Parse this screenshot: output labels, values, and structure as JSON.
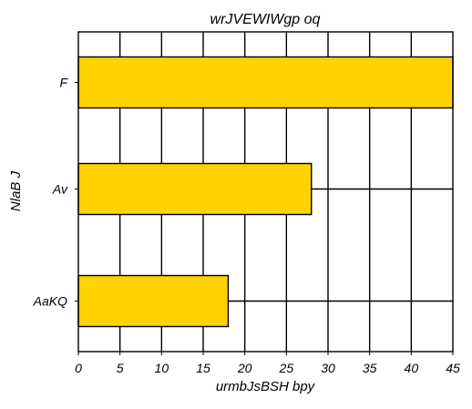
{
  "chart_data": {
    "type": "bar",
    "orientation": "horizontal",
    "title": "wrJVEWIWgp oq",
    "xlabel": "urmbJsBSH bpy",
    "ylabel": "NlaB J",
    "categories": [
      "F",
      "Av",
      "AaKQ"
    ],
    "values": [
      45,
      28,
      18
    ],
    "xlim": [
      0,
      45
    ],
    "xticks": [
      0,
      5,
      10,
      15,
      20,
      25,
      30,
      35,
      40,
      45
    ],
    "grid": true,
    "bar_color": "#FFD200",
    "edge_color": "#000000"
  }
}
